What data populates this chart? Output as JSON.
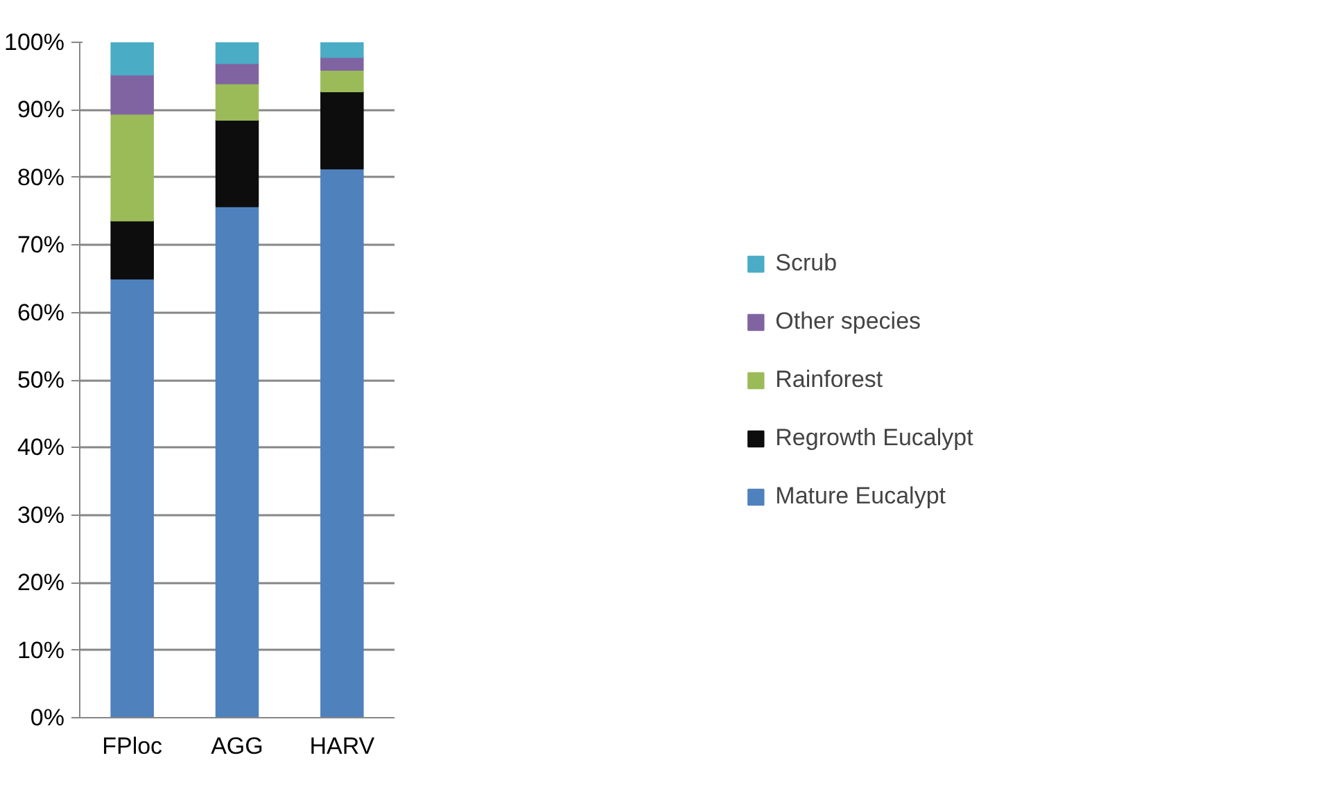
{
  "chart_data": {
    "type": "bar",
    "stacked": true,
    "categories": [
      "FPloc",
      "AGG",
      "HARV"
    ],
    "series": [
      {
        "name": "Mature Eucalypt",
        "color": "#4f81bd",
        "values": [
          65.0,
          75.7,
          81.3
        ]
      },
      {
        "name": "Regrowth Eucalypt",
        "color": "#0d0d0d",
        "values": [
          8.6,
          12.8,
          11.4
        ]
      },
      {
        "name": "Rainforest",
        "color": "#9bbb59",
        "values": [
          15.8,
          5.4,
          3.2
        ]
      },
      {
        "name": "Other species",
        "color": "#8064a2",
        "values": [
          5.8,
          3.0,
          1.9
        ]
      },
      {
        "name": "Scrub",
        "color": "#4bacc6",
        "values": [
          4.8,
          3.1,
          2.2
        ]
      }
    ],
    "ylim": [
      0,
      100
    ],
    "yticks": [
      {
        "value": 0,
        "label": "0%"
      },
      {
        "value": 10,
        "label": "10%"
      },
      {
        "value": 20,
        "label": "20%"
      },
      {
        "value": 30,
        "label": "30%"
      },
      {
        "value": 40,
        "label": "40%"
      },
      {
        "value": 50,
        "label": "50%"
      },
      {
        "value": 60,
        "label": "60%"
      },
      {
        "value": 70,
        "label": "70%"
      },
      {
        "value": 80,
        "label": "80%"
      },
      {
        "value": 90,
        "label": "90%"
      },
      {
        "value": 100,
        "label": "100%"
      }
    ],
    "grid": "y",
    "legend": "right"
  }
}
